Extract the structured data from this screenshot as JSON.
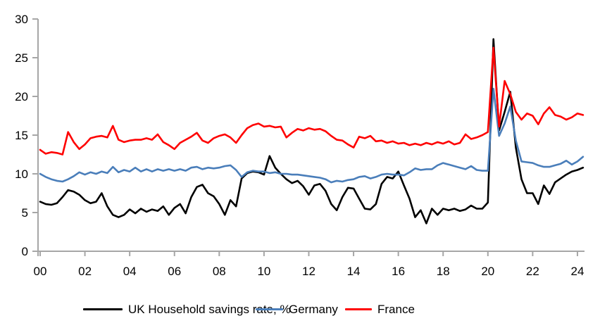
{
  "chart_data": {
    "type": "line",
    "title": "",
    "xlabel": "",
    "ylabel": "",
    "period": "quarterly",
    "start_year": 2000,
    "x_step_years": 0.25,
    "grid": "off",
    "legend_position": "bottom",
    "axis_color": "#a6a6a6",
    "y_axis": {
      "min": 0,
      "max": 30,
      "tick_step": 5,
      "tick_labels": [
        "0",
        "5",
        "10",
        "15",
        "20",
        "25",
        "30"
      ],
      "tick_values": [
        0,
        5,
        10,
        15,
        20,
        25,
        30
      ]
    },
    "x_axis": {
      "range": [
        2000,
        2024.5
      ],
      "tick_years": [
        2000,
        2002,
        2004,
        2006,
        2008,
        2010,
        2012,
        2014,
        2016,
        2018,
        2020,
        2022,
        2024
      ],
      "tick_labels": [
        "00",
        "02",
        "04",
        "06",
        "08",
        "10",
        "12",
        "14",
        "16",
        "18",
        "20",
        "22",
        "24"
      ]
    },
    "series": [
      {
        "name": "UK Household savings rate, %",
        "color": "#000000",
        "values": [
          6.4,
          6.1,
          6.0,
          6.2,
          7.0,
          7.9,
          7.7,
          7.3,
          6.6,
          6.2,
          6.4,
          7.5,
          5.8,
          4.7,
          4.4,
          4.7,
          5.4,
          4.9,
          5.5,
          5.1,
          5.4,
          5.2,
          5.8,
          4.7,
          5.6,
          6.1,
          4.9,
          7.0,
          8.3,
          8.6,
          7.5,
          7.1,
          6.1,
          4.7,
          6.6,
          5.8,
          9.4,
          10.1,
          10.3,
          10.2,
          9.9,
          12.3,
          10.8,
          10.0,
          9.3,
          8.8,
          9.1,
          8.4,
          7.3,
          8.5,
          8.7,
          7.8,
          6.1,
          5.3,
          7.0,
          8.2,
          8.1,
          6.8,
          5.5,
          5.4,
          6.1,
          8.7,
          9.6,
          9.4,
          10.3,
          8.5,
          6.8,
          4.4,
          5.3,
          3.6,
          5.5,
          4.7,
          5.5,
          5.3,
          5.5,
          5.2,
          5.4,
          5.9,
          5.5,
          5.5,
          6.3,
          27.4,
          15.6,
          18.0,
          20.6,
          13.4,
          9.3,
          7.5,
          7.5,
          6.1,
          8.5,
          7.4,
          8.9,
          9.4,
          9.9,
          10.3,
          10.5,
          10.8
        ]
      },
      {
        "name": "Germany",
        "color": "#4a7eba",
        "values": [
          10.0,
          9.6,
          9.3,
          9.1,
          9.0,
          9.3,
          9.7,
          10.2,
          9.9,
          10.2,
          10.0,
          10.3,
          10.1,
          10.9,
          10.2,
          10.5,
          10.3,
          10.8,
          10.3,
          10.6,
          10.3,
          10.6,
          10.4,
          10.6,
          10.4,
          10.6,
          10.4,
          10.8,
          10.9,
          10.6,
          10.8,
          10.7,
          10.8,
          11.0,
          11.1,
          10.5,
          9.6,
          10.2,
          10.4,
          10.3,
          10.3,
          10.1,
          10.2,
          10.0,
          10.0,
          9.9,
          9.9,
          9.8,
          9.7,
          9.6,
          9.5,
          9.3,
          8.9,
          9.1,
          9.0,
          9.2,
          9.3,
          9.6,
          9.7,
          9.4,
          9.6,
          9.9,
          10.0,
          9.9,
          9.9,
          9.8,
          10.2,
          10.7,
          10.5,
          10.6,
          10.6,
          11.1,
          11.4,
          11.2,
          11.0,
          10.8,
          10.6,
          11.0,
          10.5,
          10.4,
          10.4,
          21.0,
          14.9,
          16.5,
          18.7,
          14.3,
          11.6,
          11.5,
          11.4,
          11.1,
          10.9,
          10.9,
          11.1,
          11.3,
          11.7,
          11.2,
          11.6,
          12.2
        ]
      },
      {
        "name": "France",
        "color": "#fe0000",
        "values": [
          13.1,
          12.6,
          12.8,
          12.7,
          12.5,
          15.4,
          14.1,
          13.2,
          13.8,
          14.6,
          14.8,
          14.9,
          14.7,
          16.2,
          14.4,
          14.1,
          14.3,
          14.4,
          14.4,
          14.6,
          14.4,
          15.1,
          14.1,
          13.7,
          13.2,
          14.0,
          14.4,
          14.8,
          15.3,
          14.3,
          14.0,
          14.6,
          14.9,
          15.1,
          14.7,
          14.0,
          15.0,
          15.9,
          16.3,
          16.5,
          16.1,
          16.2,
          16.0,
          16.1,
          14.7,
          15.3,
          15.8,
          15.6,
          15.9,
          15.7,
          15.8,
          15.5,
          14.9,
          14.4,
          14.3,
          13.8,
          13.4,
          14.8,
          14.6,
          14.9,
          14.2,
          14.3,
          14.0,
          14.2,
          13.9,
          14.0,
          13.7,
          13.9,
          13.7,
          14.0,
          13.8,
          14.1,
          13.9,
          14.2,
          13.8,
          14.0,
          15.1,
          14.5,
          14.7,
          15.0,
          15.4,
          26.3,
          16.1,
          22.0,
          20.3,
          18.0,
          17.0,
          17.8,
          17.5,
          16.4,
          17.8,
          18.6,
          17.6,
          17.4,
          17.0,
          17.3,
          17.8,
          17.6
        ]
      }
    ]
  }
}
